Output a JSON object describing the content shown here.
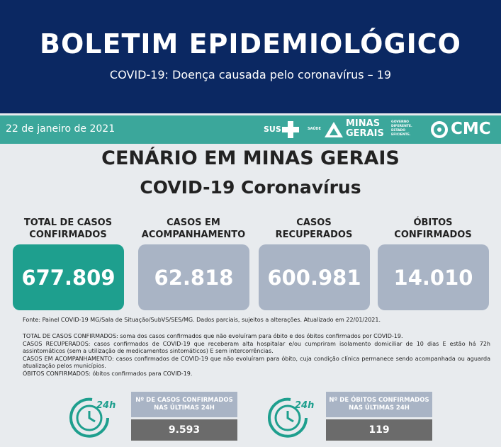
{
  "header": {
    "title": "BOLETIM EPIDEMIOLÓGICO",
    "subtitle": "COVID-19: Doença causada pelo coronavírus – 19"
  },
  "bar": {
    "date": "22 de janeiro de 2021",
    "logos": [
      "SUS",
      "SAÚDE",
      "MINAS",
      "GERAIS",
      "GOVERNO DIFERENTE. ESTADO EFICIENTE.",
      "CMC"
    ]
  },
  "section": {
    "title": "CENÁRIO EM MINAS GERAIS",
    "subtitle": "COVID-19 Coronavírus"
  },
  "cards": [
    {
      "label": "TOTAL DE CASOS CONFIRMADOS",
      "value": "677.809"
    },
    {
      "label": "CASOS EM ACOMPANHAMENTO",
      "value": "62.818"
    },
    {
      "label": "CASOS RECUPERADOS",
      "value": "600.981"
    },
    {
      "label": "ÓBITOS CONFIRMADOS",
      "value": "14.010"
    }
  ],
  "source": "Fonte: Painel COVID-19 MG/Sala de Situação/SubVS/SES/MG. Dados parciais, sujeitos a alterações. Atualizado em 22/01/2021.",
  "definitions": [
    "TOTAL DE  CASOS CONFIRMADOS: soma dos casos confirmados que não evoluíram para óbito e dos óbitos confirmados por COVID-19.",
    "CASOS RECUPERADOS: casos confirmados de COVID-19 que receberam alta hospitalar e/ou cumpriram isolamento domiciliar de 10 dias E estão há 72h assintomáticos (sem a utilização de medicamentos sintomáticos) E sem intercorrências.",
    "CASOS EM ACOMPANHAMENTO: casos confirmados de COVID-19 que não evoluíram para óbito, cuja condição clínica permanece sendo acompanhada ou aguarda atualização pelos municípios.",
    "ÓBITOS CONFIRMADOS: óbitos confirmados para COVID-19."
  ],
  "last24": [
    {
      "label": "Nº DE CASOS CONFIRMADOS NAS ÚLTIMAS 24H",
      "value": "9.593",
      "icon": "24h"
    },
    {
      "label": "Nº DE ÓBITOS CONFIRMADOS NAS ÚLTIMAS 24H",
      "value": "119",
      "icon": "24h"
    }
  ]
}
